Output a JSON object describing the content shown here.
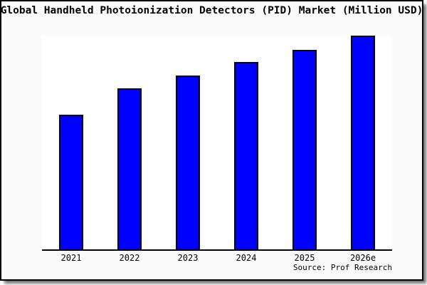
{
  "title": "Global Handheld Photoionization Detectors (PID) Market (Million USD)",
  "source_note": "Source: Prof Research",
  "colors": {
    "bar_fill": "#0000ff",
    "bar_border": "#000000",
    "axis_color": "#000000",
    "frame_background": "#fafafa",
    "plot_background": "#ffffff",
    "frame_border": "#000000"
  },
  "chart_data": {
    "type": "bar",
    "title": "Global Handheld Photoionization Detectors (PID) Market (Million USD)",
    "categories": [
      "2021",
      "2022",
      "2023",
      "2024",
      "2025",
      "2026e"
    ],
    "values": [
      62.9,
      75.2,
      81.5,
      87.7,
      93.4,
      100
    ],
    "values_note": "no numeric y-axis is shown in the chart; values are relative bar heights with 2026e = 100",
    "xlabel": "",
    "ylabel": "",
    "ylim": [
      0,
      100.5
    ],
    "grid": false,
    "legend": false,
    "source": "Source: Prof Research"
  }
}
